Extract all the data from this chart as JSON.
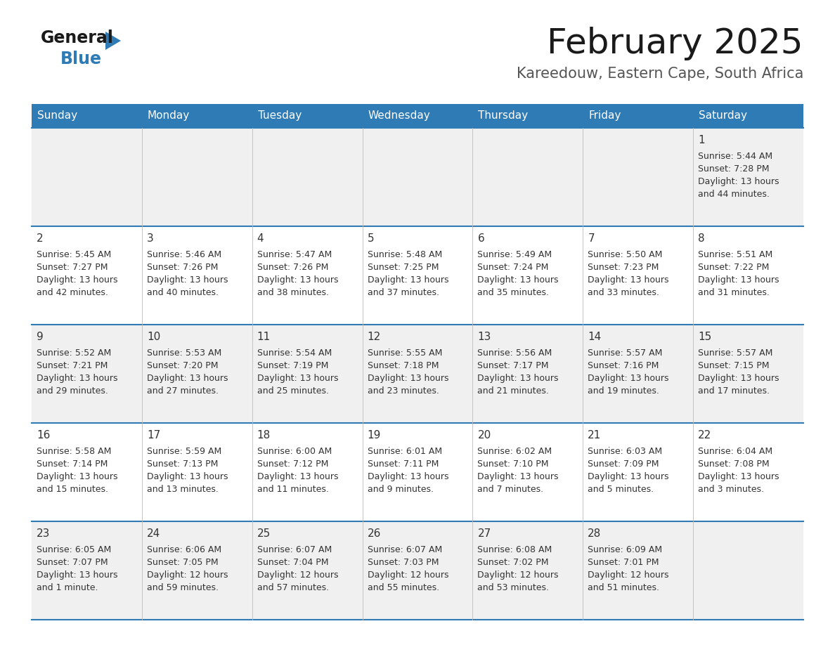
{
  "title": "February 2025",
  "subtitle": "Kareedouw, Eastern Cape, South Africa",
  "header_bg": "#2E7BB5",
  "header_text": "#FFFFFF",
  "row_bg_odd": "#F0F0F0",
  "row_bg_even": "#FFFFFF",
  "border_color": "#2E7BB5",
  "cell_text_color": "#333333",
  "days_of_week": [
    "Sunday",
    "Monday",
    "Tuesday",
    "Wednesday",
    "Thursday",
    "Friday",
    "Saturday"
  ],
  "calendar_data": [
    [
      {
        "day": "",
        "sunrise": "",
        "sunset": "",
        "daylight": ""
      },
      {
        "day": "",
        "sunrise": "",
        "sunset": "",
        "daylight": ""
      },
      {
        "day": "",
        "sunrise": "",
        "sunset": "",
        "daylight": ""
      },
      {
        "day": "",
        "sunrise": "",
        "sunset": "",
        "daylight": ""
      },
      {
        "day": "",
        "sunrise": "",
        "sunset": "",
        "daylight": ""
      },
      {
        "day": "",
        "sunrise": "",
        "sunset": "",
        "daylight": ""
      },
      {
        "day": "1",
        "sunrise": "5:44 AM",
        "sunset": "7:28 PM",
        "daylight": "13 hours and 44 minutes."
      }
    ],
    [
      {
        "day": "2",
        "sunrise": "5:45 AM",
        "sunset": "7:27 PM",
        "daylight": "13 hours and 42 minutes."
      },
      {
        "day": "3",
        "sunrise": "5:46 AM",
        "sunset": "7:26 PM",
        "daylight": "13 hours and 40 minutes."
      },
      {
        "day": "4",
        "sunrise": "5:47 AM",
        "sunset": "7:26 PM",
        "daylight": "13 hours and 38 minutes."
      },
      {
        "day": "5",
        "sunrise": "5:48 AM",
        "sunset": "7:25 PM",
        "daylight": "13 hours and 37 minutes."
      },
      {
        "day": "6",
        "sunrise": "5:49 AM",
        "sunset": "7:24 PM",
        "daylight": "13 hours and 35 minutes."
      },
      {
        "day": "7",
        "sunrise": "5:50 AM",
        "sunset": "7:23 PM",
        "daylight": "13 hours and 33 minutes."
      },
      {
        "day": "8",
        "sunrise": "5:51 AM",
        "sunset": "7:22 PM",
        "daylight": "13 hours and 31 minutes."
      }
    ],
    [
      {
        "day": "9",
        "sunrise": "5:52 AM",
        "sunset": "7:21 PM",
        "daylight": "13 hours and 29 minutes."
      },
      {
        "day": "10",
        "sunrise": "5:53 AM",
        "sunset": "7:20 PM",
        "daylight": "13 hours and 27 minutes."
      },
      {
        "day": "11",
        "sunrise": "5:54 AM",
        "sunset": "7:19 PM",
        "daylight": "13 hours and 25 minutes."
      },
      {
        "day": "12",
        "sunrise": "5:55 AM",
        "sunset": "7:18 PM",
        "daylight": "13 hours and 23 minutes."
      },
      {
        "day": "13",
        "sunrise": "5:56 AM",
        "sunset": "7:17 PM",
        "daylight": "13 hours and 21 minutes."
      },
      {
        "day": "14",
        "sunrise": "5:57 AM",
        "sunset": "7:16 PM",
        "daylight": "13 hours and 19 minutes."
      },
      {
        "day": "15",
        "sunrise": "5:57 AM",
        "sunset": "7:15 PM",
        "daylight": "13 hours and 17 minutes."
      }
    ],
    [
      {
        "day": "16",
        "sunrise": "5:58 AM",
        "sunset": "7:14 PM",
        "daylight": "13 hours and 15 minutes."
      },
      {
        "day": "17",
        "sunrise": "5:59 AM",
        "sunset": "7:13 PM",
        "daylight": "13 hours and 13 minutes."
      },
      {
        "day": "18",
        "sunrise": "6:00 AM",
        "sunset": "7:12 PM",
        "daylight": "13 hours and 11 minutes."
      },
      {
        "day": "19",
        "sunrise": "6:01 AM",
        "sunset": "7:11 PM",
        "daylight": "13 hours and 9 minutes."
      },
      {
        "day": "20",
        "sunrise": "6:02 AM",
        "sunset": "7:10 PM",
        "daylight": "13 hours and 7 minutes."
      },
      {
        "day": "21",
        "sunrise": "6:03 AM",
        "sunset": "7:09 PM",
        "daylight": "13 hours and 5 minutes."
      },
      {
        "day": "22",
        "sunrise": "6:04 AM",
        "sunset": "7:08 PM",
        "daylight": "13 hours and 3 minutes."
      }
    ],
    [
      {
        "day": "23",
        "sunrise": "6:05 AM",
        "sunset": "7:07 PM",
        "daylight": "13 hours and 1 minute."
      },
      {
        "day": "24",
        "sunrise": "6:06 AM",
        "sunset": "7:05 PM",
        "daylight": "12 hours and 59 minutes."
      },
      {
        "day": "25",
        "sunrise": "6:07 AM",
        "sunset": "7:04 PM",
        "daylight": "12 hours and 57 minutes."
      },
      {
        "day": "26",
        "sunrise": "6:07 AM",
        "sunset": "7:03 PM",
        "daylight": "12 hours and 55 minutes."
      },
      {
        "day": "27",
        "sunrise": "6:08 AM",
        "sunset": "7:02 PM",
        "daylight": "12 hours and 53 minutes."
      },
      {
        "day": "28",
        "sunrise": "6:09 AM",
        "sunset": "7:01 PM",
        "daylight": "12 hours and 51 minutes."
      },
      {
        "day": "",
        "sunrise": "",
        "sunset": "",
        "daylight": ""
      }
    ]
  ],
  "logo_general_color": "#1a1a1a",
  "logo_blue_color": "#2E7BB5",
  "title_fontsize": 36,
  "subtitle_fontsize": 15,
  "header_fontsize": 11,
  "day_number_fontsize": 11,
  "cell_text_fontsize": 9
}
